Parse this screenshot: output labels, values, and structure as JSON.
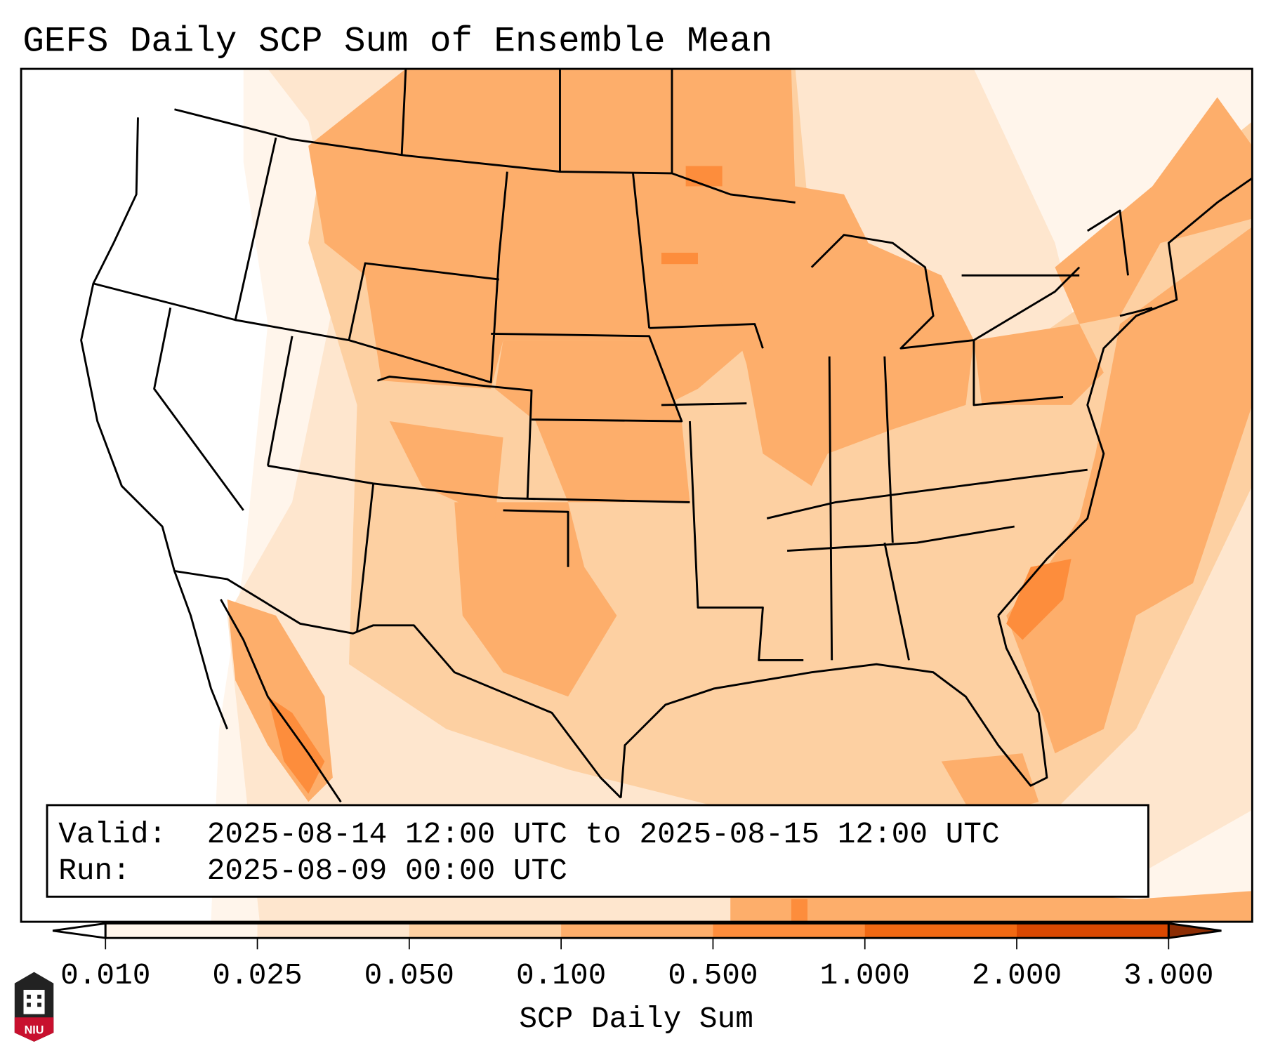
{
  "title": "GEFS Daily SCP Sum of Ensemble Mean",
  "info_box": {
    "valid_label": "Valid:",
    "valid_value": "2025-08-14 12:00 UTC to 2025-08-15 12:00 UTC",
    "run_label": "Run:",
    "run_value": "2025-08-09 00:00 UTC"
  },
  "colorbar": {
    "label": "SCP Daily Sum",
    "ticks": [
      "0.010",
      "0.025",
      "0.050",
      "0.100",
      "0.500",
      "1.000",
      "2.000",
      "3.000"
    ],
    "colors": {
      "under": "#ffffff",
      "bins": [
        "#fff5eb",
        "#fee6ce",
        "#fdd0a2",
        "#fdae6b",
        "#fd8d3c",
        "#f16913",
        "#d94801"
      ],
      "over": "#8c2d04"
    }
  },
  "logo": {
    "text": "NIU",
    "color": "#c8102e"
  }
}
